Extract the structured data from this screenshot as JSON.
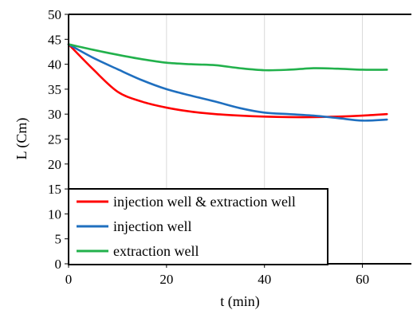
{
  "chart_data": {
    "type": "line",
    "xlabel": "t (min)",
    "ylabel": "L (Cm)",
    "xlim": [
      0,
      70
    ],
    "ylim": [
      0,
      50
    ],
    "x_ticks": [
      "0",
      "20",
      "40",
      "60"
    ],
    "y_ticks": [
      "0",
      "5",
      "10",
      "15",
      "20",
      "25",
      "30",
      "35",
      "40",
      "45",
      "50"
    ],
    "grid": "vertical",
    "legend_position": "bottom-left",
    "series": [
      {
        "name": "injection well & extraction well",
        "color": "#ff0000",
        "x": [
          0,
          5,
          10,
          15,
          20,
          25,
          30,
          35,
          40,
          45,
          50,
          55,
          60,
          65
        ],
        "y": [
          44,
          39,
          34.5,
          32.5,
          31.3,
          30.5,
          30,
          29.7,
          29.5,
          29.4,
          29.4,
          29.5,
          29.7,
          30
        ]
      },
      {
        "name": "injection well",
        "color": "#1f6fbf",
        "x": [
          0,
          5,
          10,
          15,
          20,
          25,
          30,
          35,
          40,
          45,
          50,
          55,
          60,
          65
        ],
        "y": [
          44,
          41.3,
          39,
          36.8,
          35,
          33.7,
          32.5,
          31.2,
          30.3,
          30,
          29.7,
          29.2,
          28.7,
          28.9
        ]
      },
      {
        "name": "extraction well",
        "color": "#22b14c",
        "x": [
          0,
          5,
          10,
          15,
          20,
          25,
          30,
          35,
          40,
          45,
          50,
          55,
          60,
          65
        ],
        "y": [
          44,
          42.9,
          41.9,
          41,
          40.3,
          40,
          39.8,
          39.2,
          38.8,
          38.9,
          39.2,
          39.1,
          38.9,
          38.9
        ]
      }
    ]
  }
}
